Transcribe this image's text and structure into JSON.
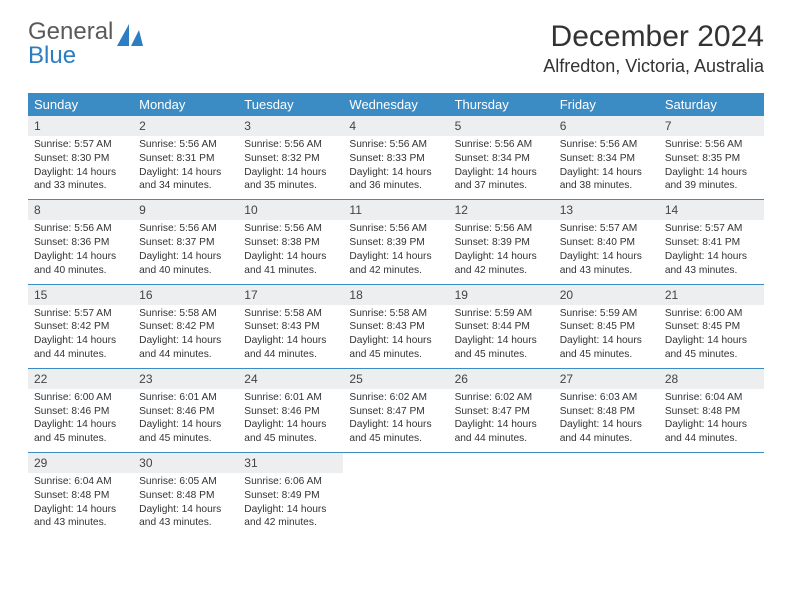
{
  "logo": {
    "word1": "General",
    "word2": "Blue"
  },
  "title": {
    "month": "December 2024",
    "location": "Alfredton, Victoria, Australia"
  },
  "colors": {
    "header_bg": "#3b8bc5",
    "header_text": "#ffffff",
    "daynum_bg": "#eceeef",
    "week_border": "#3b8bc5",
    "logo_blue": "#2d7dc2",
    "text": "#333333"
  },
  "daysOfWeek": [
    "Sunday",
    "Monday",
    "Tuesday",
    "Wednesday",
    "Thursday",
    "Friday",
    "Saturday"
  ],
  "weeks": [
    [
      {
        "n": "1",
        "sr": "5:57 AM",
        "ss": "8:30 PM",
        "dl": "14 hours and 33 minutes."
      },
      {
        "n": "2",
        "sr": "5:56 AM",
        "ss": "8:31 PM",
        "dl": "14 hours and 34 minutes."
      },
      {
        "n": "3",
        "sr": "5:56 AM",
        "ss": "8:32 PM",
        "dl": "14 hours and 35 minutes."
      },
      {
        "n": "4",
        "sr": "5:56 AM",
        "ss": "8:33 PM",
        "dl": "14 hours and 36 minutes."
      },
      {
        "n": "5",
        "sr": "5:56 AM",
        "ss": "8:34 PM",
        "dl": "14 hours and 37 minutes."
      },
      {
        "n": "6",
        "sr": "5:56 AM",
        "ss": "8:34 PM",
        "dl": "14 hours and 38 minutes."
      },
      {
        "n": "7",
        "sr": "5:56 AM",
        "ss": "8:35 PM",
        "dl": "14 hours and 39 minutes."
      }
    ],
    [
      {
        "n": "8",
        "sr": "5:56 AM",
        "ss": "8:36 PM",
        "dl": "14 hours and 40 minutes."
      },
      {
        "n": "9",
        "sr": "5:56 AM",
        "ss": "8:37 PM",
        "dl": "14 hours and 40 minutes."
      },
      {
        "n": "10",
        "sr": "5:56 AM",
        "ss": "8:38 PM",
        "dl": "14 hours and 41 minutes."
      },
      {
        "n": "11",
        "sr": "5:56 AM",
        "ss": "8:39 PM",
        "dl": "14 hours and 42 minutes."
      },
      {
        "n": "12",
        "sr": "5:56 AM",
        "ss": "8:39 PM",
        "dl": "14 hours and 42 minutes."
      },
      {
        "n": "13",
        "sr": "5:57 AM",
        "ss": "8:40 PM",
        "dl": "14 hours and 43 minutes."
      },
      {
        "n": "14",
        "sr": "5:57 AM",
        "ss": "8:41 PM",
        "dl": "14 hours and 43 minutes."
      }
    ],
    [
      {
        "n": "15",
        "sr": "5:57 AM",
        "ss": "8:42 PM",
        "dl": "14 hours and 44 minutes."
      },
      {
        "n": "16",
        "sr": "5:58 AM",
        "ss": "8:42 PM",
        "dl": "14 hours and 44 minutes."
      },
      {
        "n": "17",
        "sr": "5:58 AM",
        "ss": "8:43 PM",
        "dl": "14 hours and 44 minutes."
      },
      {
        "n": "18",
        "sr": "5:58 AM",
        "ss": "8:43 PM",
        "dl": "14 hours and 45 minutes."
      },
      {
        "n": "19",
        "sr": "5:59 AM",
        "ss": "8:44 PM",
        "dl": "14 hours and 45 minutes."
      },
      {
        "n": "20",
        "sr": "5:59 AM",
        "ss": "8:45 PM",
        "dl": "14 hours and 45 minutes."
      },
      {
        "n": "21",
        "sr": "6:00 AM",
        "ss": "8:45 PM",
        "dl": "14 hours and 45 minutes."
      }
    ],
    [
      {
        "n": "22",
        "sr": "6:00 AM",
        "ss": "8:46 PM",
        "dl": "14 hours and 45 minutes."
      },
      {
        "n": "23",
        "sr": "6:01 AM",
        "ss": "8:46 PM",
        "dl": "14 hours and 45 minutes."
      },
      {
        "n": "24",
        "sr": "6:01 AM",
        "ss": "8:46 PM",
        "dl": "14 hours and 45 minutes."
      },
      {
        "n": "25",
        "sr": "6:02 AM",
        "ss": "8:47 PM",
        "dl": "14 hours and 45 minutes."
      },
      {
        "n": "26",
        "sr": "6:02 AM",
        "ss": "8:47 PM",
        "dl": "14 hours and 44 minutes."
      },
      {
        "n": "27",
        "sr": "6:03 AM",
        "ss": "8:48 PM",
        "dl": "14 hours and 44 minutes."
      },
      {
        "n": "28",
        "sr": "6:04 AM",
        "ss": "8:48 PM",
        "dl": "14 hours and 44 minutes."
      }
    ],
    [
      {
        "n": "29",
        "sr": "6:04 AM",
        "ss": "8:48 PM",
        "dl": "14 hours and 43 minutes."
      },
      {
        "n": "30",
        "sr": "6:05 AM",
        "ss": "8:48 PM",
        "dl": "14 hours and 43 minutes."
      },
      {
        "n": "31",
        "sr": "6:06 AM",
        "ss": "8:49 PM",
        "dl": "14 hours and 42 minutes."
      },
      null,
      null,
      null,
      null
    ]
  ],
  "labels": {
    "sunrise_prefix": "Sunrise: ",
    "sunset_prefix": "Sunset: ",
    "daylight_prefix": "Daylight: "
  }
}
